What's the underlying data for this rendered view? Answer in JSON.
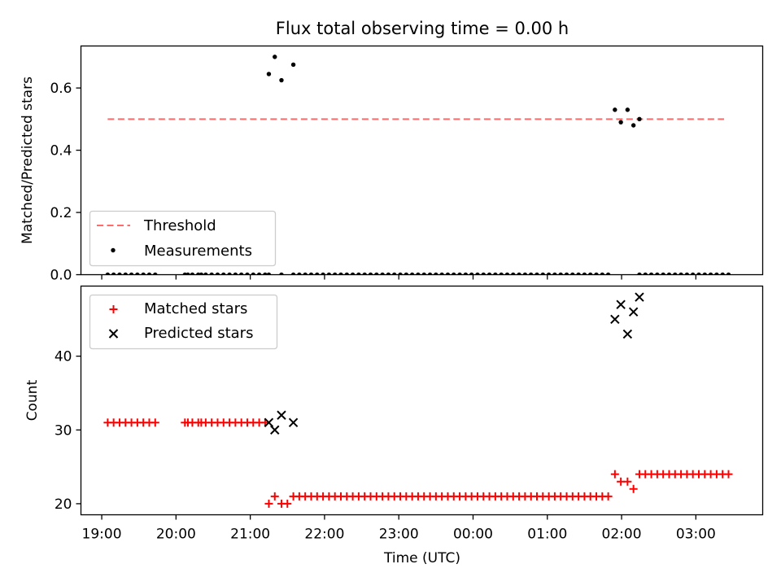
{
  "colors": {
    "threshold": "#ff6a6a",
    "measurement": "#000000",
    "matched": "#ff0000",
    "predicted": "#000000",
    "axis": "#000000"
  },
  "chart_data": [
    {
      "type": "scatter",
      "title": "Flux total observing time = 0.00 h",
      "xlabel": "",
      "ylabel": "Matched/Predicted stars",
      "xlim_hours": [
        18.72,
        27.9
      ],
      "ylim": [
        0,
        0.735
      ],
      "yticks": [
        0.0,
        0.2,
        0.4,
        0.6
      ],
      "ytick_labels": [
        "0.0",
        "0.2",
        "0.4",
        "0.6"
      ],
      "xticks": [
        19,
        20,
        21,
        22,
        23,
        24,
        25,
        26,
        27
      ],
      "xtick_labels": [
        "",
        "",
        "",
        "",
        "",
        "",
        "",
        "",
        ""
      ],
      "legend": {
        "placement": "lower-left",
        "entries": [
          "Threshold",
          "Measurements"
        ]
      },
      "threshold": {
        "name": "Threshold",
        "y": 0.5,
        "x_range": [
          19.08,
          27.38
        ]
      },
      "series": [
        {
          "name": "Measurements",
          "marker": "dot",
          "points": [
            [
              19.08,
              0
            ],
            [
              19.16,
              0
            ],
            [
              19.24,
              0
            ],
            [
              19.32,
              0
            ],
            [
              19.4,
              0
            ],
            [
              19.48,
              0
            ],
            [
              19.56,
              0
            ],
            [
              19.64,
              0
            ],
            [
              19.72,
              0
            ],
            [
              20.12,
              0
            ],
            [
              20.16,
              0
            ],
            [
              20.22,
              0
            ],
            [
              20.3,
              0
            ],
            [
              20.34,
              0
            ],
            [
              20.4,
              0
            ],
            [
              20.48,
              0
            ],
            [
              20.56,
              0
            ],
            [
              20.64,
              0
            ],
            [
              20.72,
              0
            ],
            [
              20.8,
              0
            ],
            [
              20.88,
              0
            ],
            [
              20.96,
              0
            ],
            [
              21.04,
              0
            ],
            [
              21.12,
              0
            ],
            [
              21.2,
              0
            ],
            [
              21.25,
              0.645
            ],
            [
              21.33,
              0.7
            ],
            [
              21.42,
              0.625
            ],
            [
              21.58,
              0.675
            ],
            [
              21.25,
              0
            ],
            [
              21.42,
              0
            ],
            [
              21.58,
              0
            ],
            [
              21.66,
              0
            ],
            [
              21.74,
              0
            ],
            [
              21.82,
              0
            ],
            [
              21.9,
              0
            ],
            [
              21.98,
              0
            ],
            [
              22.06,
              0
            ],
            [
              22.14,
              0
            ],
            [
              22.22,
              0
            ],
            [
              22.3,
              0
            ],
            [
              22.38,
              0
            ],
            [
              22.46,
              0
            ],
            [
              22.54,
              0
            ],
            [
              22.62,
              0
            ],
            [
              22.7,
              0
            ],
            [
              22.78,
              0
            ],
            [
              22.86,
              0
            ],
            [
              22.94,
              0
            ],
            [
              23.02,
              0
            ],
            [
              23.1,
              0
            ],
            [
              23.18,
              0
            ],
            [
              23.26,
              0
            ],
            [
              23.34,
              0
            ],
            [
              23.42,
              0
            ],
            [
              23.5,
              0
            ],
            [
              23.58,
              0
            ],
            [
              23.66,
              0
            ],
            [
              23.74,
              0
            ],
            [
              23.82,
              0
            ],
            [
              23.9,
              0
            ],
            [
              23.98,
              0
            ],
            [
              24.06,
              0
            ],
            [
              24.14,
              0
            ],
            [
              24.22,
              0
            ],
            [
              24.3,
              0
            ],
            [
              24.38,
              0
            ],
            [
              24.46,
              0
            ],
            [
              24.54,
              0
            ],
            [
              24.62,
              0
            ],
            [
              24.7,
              0
            ],
            [
              24.78,
              0
            ],
            [
              24.86,
              0
            ],
            [
              24.94,
              0
            ],
            [
              25.02,
              0
            ],
            [
              25.1,
              0
            ],
            [
              25.18,
              0
            ],
            [
              25.26,
              0
            ],
            [
              25.34,
              0
            ],
            [
              25.42,
              0
            ],
            [
              25.5,
              0
            ],
            [
              25.58,
              0
            ],
            [
              25.66,
              0
            ],
            [
              25.74,
              0
            ],
            [
              25.82,
              0
            ],
            [
              25.91,
              0.53
            ],
            [
              25.99,
              0.49
            ],
            [
              26.08,
              0.53
            ],
            [
              26.16,
              0.48
            ],
            [
              26.24,
              0.5
            ],
            [
              26.24,
              0
            ],
            [
              26.32,
              0
            ],
            [
              26.4,
              0
            ],
            [
              26.48,
              0
            ],
            [
              26.56,
              0
            ],
            [
              26.64,
              0
            ],
            [
              26.72,
              0
            ],
            [
              26.8,
              0
            ],
            [
              26.88,
              0
            ],
            [
              26.96,
              0
            ],
            [
              27.04,
              0
            ],
            [
              27.12,
              0
            ],
            [
              27.2,
              0
            ],
            [
              27.28,
              0
            ],
            [
              27.36,
              0
            ],
            [
              27.44,
              0
            ]
          ]
        }
      ]
    },
    {
      "type": "scatter",
      "title": "",
      "xlabel": "Time (UTC)",
      "ylabel": "Count",
      "xlim_hours": [
        18.72,
        27.9
      ],
      "ylim": [
        18.5,
        49.5
      ],
      "yticks": [
        20,
        30,
        40
      ],
      "ytick_labels": [
        "20",
        "30",
        "40"
      ],
      "xticks": [
        19,
        20,
        21,
        22,
        23,
        24,
        25,
        26,
        27
      ],
      "xtick_labels": [
        "19:00",
        "20:00",
        "21:00",
        "22:00",
        "23:00",
        "00:00",
        "01:00",
        "02:00",
        "03:00"
      ],
      "legend": {
        "placement": "upper-left",
        "entries": [
          "Matched stars",
          "Predicted stars"
        ]
      },
      "series": [
        {
          "name": "Matched stars",
          "marker": "plus",
          "points": [
            [
              19.08,
              31
            ],
            [
              19.16,
              31
            ],
            [
              19.24,
              31
            ],
            [
              19.32,
              31
            ],
            [
              19.4,
              31
            ],
            [
              19.48,
              31
            ],
            [
              19.56,
              31
            ],
            [
              19.64,
              31
            ],
            [
              19.72,
              31
            ],
            [
              20.12,
              31
            ],
            [
              20.16,
              31
            ],
            [
              20.22,
              31
            ],
            [
              20.3,
              31
            ],
            [
              20.34,
              31
            ],
            [
              20.4,
              31
            ],
            [
              20.48,
              31
            ],
            [
              20.56,
              31
            ],
            [
              20.64,
              31
            ],
            [
              20.72,
              31
            ],
            [
              20.8,
              31
            ],
            [
              20.88,
              31
            ],
            [
              20.96,
              31
            ],
            [
              21.04,
              31
            ],
            [
              21.12,
              31
            ],
            [
              21.2,
              31
            ],
            [
              21.25,
              20
            ],
            [
              21.33,
              21
            ],
            [
              21.42,
              20
            ],
            [
              21.5,
              20
            ],
            [
              21.58,
              21
            ],
            [
              21.66,
              21
            ],
            [
              21.74,
              21
            ],
            [
              21.82,
              21
            ],
            [
              21.9,
              21
            ],
            [
              21.98,
              21
            ],
            [
              22.06,
              21
            ],
            [
              22.14,
              21
            ],
            [
              22.22,
              21
            ],
            [
              22.3,
              21
            ],
            [
              22.38,
              21
            ],
            [
              22.46,
              21
            ],
            [
              22.54,
              21
            ],
            [
              22.62,
              21
            ],
            [
              22.7,
              21
            ],
            [
              22.78,
              21
            ],
            [
              22.86,
              21
            ],
            [
              22.94,
              21
            ],
            [
              23.02,
              21
            ],
            [
              23.1,
              21
            ],
            [
              23.18,
              21
            ],
            [
              23.26,
              21
            ],
            [
              23.34,
              21
            ],
            [
              23.42,
              21
            ],
            [
              23.5,
              21
            ],
            [
              23.58,
              21
            ],
            [
              23.66,
              21
            ],
            [
              23.74,
              21
            ],
            [
              23.82,
              21
            ],
            [
              23.9,
              21
            ],
            [
              23.98,
              21
            ],
            [
              24.06,
              21
            ],
            [
              24.14,
              21
            ],
            [
              24.22,
              21
            ],
            [
              24.3,
              21
            ],
            [
              24.38,
              21
            ],
            [
              24.46,
              21
            ],
            [
              24.54,
              21
            ],
            [
              24.62,
              21
            ],
            [
              24.7,
              21
            ],
            [
              24.78,
              21
            ],
            [
              24.86,
              21
            ],
            [
              24.94,
              21
            ],
            [
              25.02,
              21
            ],
            [
              25.1,
              21
            ],
            [
              25.18,
              21
            ],
            [
              25.26,
              21
            ],
            [
              25.34,
              21
            ],
            [
              25.42,
              21
            ],
            [
              25.5,
              21
            ],
            [
              25.58,
              21
            ],
            [
              25.66,
              21
            ],
            [
              25.74,
              21
            ],
            [
              25.82,
              21
            ],
            [
              25.91,
              24
            ],
            [
              25.99,
              23
            ],
            [
              26.08,
              23
            ],
            [
              26.16,
              22
            ],
            [
              26.24,
              24
            ],
            [
              26.32,
              24
            ],
            [
              26.4,
              24
            ],
            [
              26.48,
              24
            ],
            [
              26.56,
              24
            ],
            [
              26.64,
              24
            ],
            [
              26.72,
              24
            ],
            [
              26.8,
              24
            ],
            [
              26.88,
              24
            ],
            [
              26.96,
              24
            ],
            [
              27.04,
              24
            ],
            [
              27.12,
              24
            ],
            [
              27.2,
              24
            ],
            [
              27.28,
              24
            ],
            [
              27.36,
              24
            ],
            [
              27.44,
              24
            ]
          ]
        },
        {
          "name": "Predicted stars",
          "marker": "x",
          "points": [
            [
              21.25,
              31
            ],
            [
              21.33,
              30
            ],
            [
              21.42,
              32
            ],
            [
              21.58,
              31
            ],
            [
              25.91,
              45
            ],
            [
              25.99,
              47
            ],
            [
              26.08,
              43
            ],
            [
              26.16,
              46
            ],
            [
              26.24,
              48
            ]
          ]
        }
      ]
    }
  ]
}
